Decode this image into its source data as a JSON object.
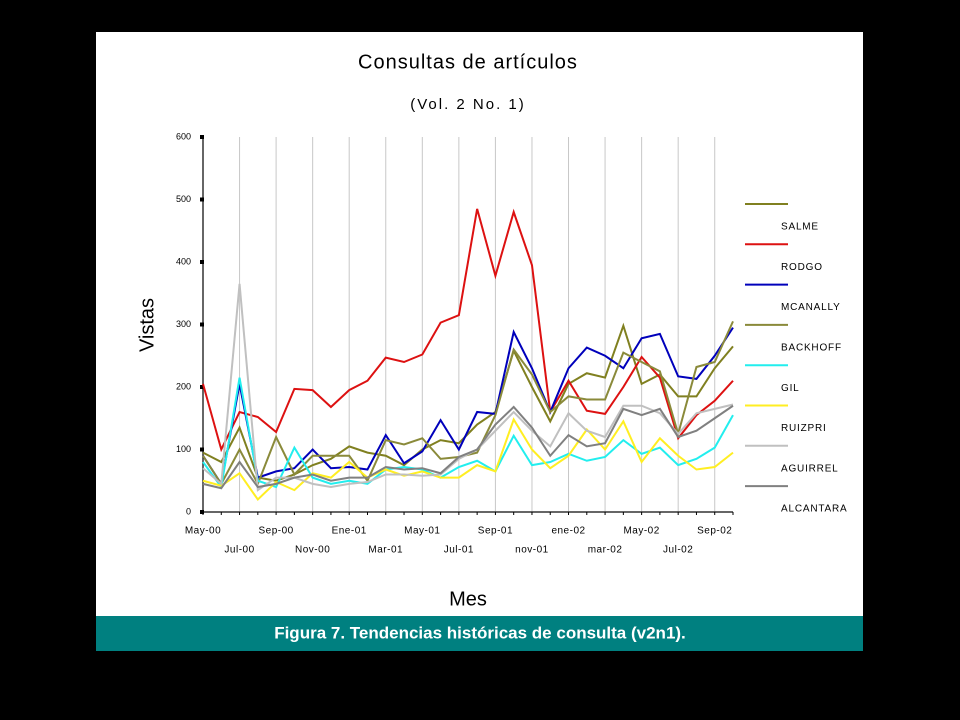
{
  "chart_data": {
    "type": "line",
    "title": "Consultas de artículos",
    "subtitle": "(Vol. 2 No. 1)",
    "y_label": "Vistas",
    "x_label": "Mes",
    "categories": [
      "May-00",
      null,
      "Jul-00",
      null,
      "Sep-00",
      null,
      "Nov-00",
      null,
      "Ene-01",
      null,
      "Mar-01",
      null,
      "May-01",
      null,
      "Jul-01",
      null,
      "Sep-01",
      null,
      "nov-01",
      null,
      "ene-02",
      null,
      "mar-02",
      null,
      "May-02",
      null,
      "Jul-02",
      null,
      "Sep-02",
      null
    ],
    "ylim": [
      0,
      600
    ],
    "yticks": [
      0,
      100,
      200,
      300,
      400,
      500,
      600
    ],
    "grid": true,
    "legend": "right",
    "series": [
      {
        "name": "SALME",
        "color": "#808020",
        "values": [
          95,
          80,
          135,
          55,
          50,
          60,
          75,
          85,
          105,
          95,
          90,
          75,
          100,
          115,
          110,
          140,
          160,
          258,
          200,
          145,
          205,
          222,
          215,
          298,
          205,
          220,
          185,
          185,
          230,
          265
        ]
      },
      {
        "name": "RODGO",
        "color": "#dd1111",
        "values": [
          205,
          100,
          160,
          152,
          128,
          197,
          195,
          168,
          195,
          210,
          247,
          240,
          252,
          303,
          315,
          485,
          378,
          480,
          395,
          160,
          210,
          162,
          157,
          200,
          248,
          215,
          118,
          155,
          178,
          210
        ]
      },
      {
        "name": "MCANALLY",
        "color": "#0000bb",
        "values": [
          90,
          45,
          205,
          55,
          65,
          70,
          100,
          70,
          72,
          68,
          123,
          78,
          97,
          147,
          100,
          160,
          157,
          288,
          230,
          160,
          230,
          263,
          250,
          230,
          278,
          285,
          217,
          213,
          250,
          295
        ]
      },
      {
        "name": "BACKHOFF",
        "color": "#8a8a3a",
        "values": [
          90,
          45,
          100,
          45,
          120,
          60,
          90,
          90,
          90,
          50,
          115,
          108,
          118,
          85,
          88,
          95,
          155,
          260,
          220,
          160,
          185,
          180,
          180,
          255,
          240,
          225,
          125,
          232,
          240,
          305
        ]
      },
      {
        "name": "GIL",
        "color": "#22eeee",
        "values": [
          80,
          40,
          215,
          50,
          40,
          103,
          55,
          45,
          50,
          45,
          68,
          72,
          68,
          55,
          72,
          82,
          65,
          122,
          75,
          80,
          93,
          82,
          88,
          115,
          93,
          103,
          75,
          85,
          103,
          155
        ]
      },
      {
        "name": "RUIZPRI",
        "color": "#ffee22",
        "values": [
          50,
          42,
          62,
          20,
          48,
          35,
          62,
          55,
          80,
          55,
          68,
          58,
          65,
          55,
          55,
          75,
          65,
          148,
          100,
          70,
          90,
          132,
          100,
          145,
          80,
          118,
          90,
          68,
          72,
          95
        ]
      },
      {
        "name": "AGUIRREL",
        "color": "#c0c0c0",
        "values": [
          70,
          45,
          365,
          35,
          55,
          55,
          45,
          40,
          45,
          48,
          60,
          60,
          58,
          60,
          85,
          100,
          130,
          160,
          130,
          105,
          158,
          130,
          120,
          170,
          170,
          158,
          125,
          158,
          165,
          172
        ]
      },
      {
        "name": "ALCANTARA",
        "color": "#808080",
        "values": [
          45,
          38,
          80,
          40,
          45,
          55,
          60,
          50,
          55,
          55,
          72,
          68,
          70,
          62,
          88,
          100,
          140,
          168,
          135,
          90,
          123,
          105,
          110,
          165,
          155,
          165,
          120,
          130,
          150,
          170
        ]
      }
    ]
  },
  "caption": "Figura 7. Tendencias históricas de consulta (v2n1)."
}
